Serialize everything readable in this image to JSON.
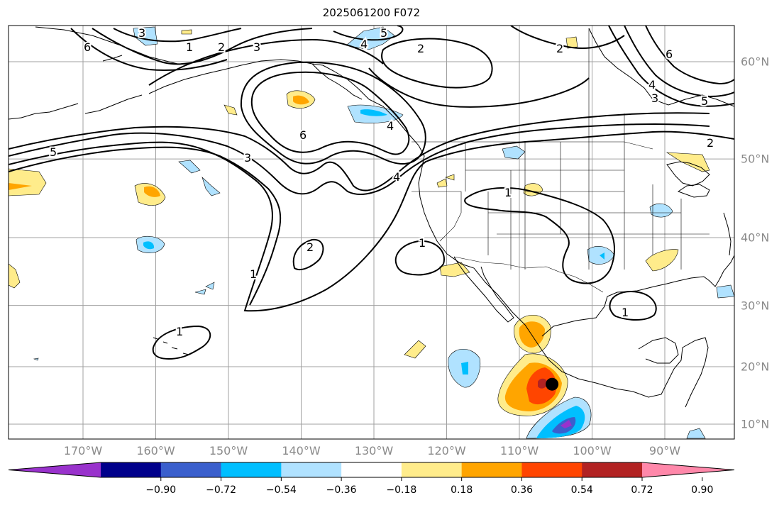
{
  "title": "2025061200 F072",
  "lon_labels": [
    {
      "text": "170°W",
      "lon": -170
    },
    {
      "text": "160°W",
      "lon": -160
    },
    {
      "text": "150°W",
      "lon": -150
    },
    {
      "text": "140°W",
      "lon": -140
    },
    {
      "text": "130°W",
      "lon": -130
    },
    {
      "text": "120°W",
      "lon": -120
    },
    {
      "text": "110°W",
      "lon": -110
    },
    {
      "text": "100°W",
      "lon": -100
    },
    {
      "text": "90°W",
      "lon": -90
    }
  ],
  "lat_labels": [
    {
      "text": "60°N",
      "lat": 60
    },
    {
      "text": "50°N",
      "lat": 50
    },
    {
      "text": "40°N",
      "lat": 40
    },
    {
      "text": "30°N",
      "lat": 30
    },
    {
      "text": "20°N",
      "lat": 20
    },
    {
      "text": "10°N",
      "lat": 10
    }
  ],
  "colorbar": {
    "colors": [
      "#9932CC",
      "#00008B",
      "#3A5FCD",
      "#00BFFF",
      "#B0E2FF",
      "#FFFFFF",
      "#FFEC8B",
      "#FFA500",
      "#FF4500",
      "#B22222",
      "#FF88AA"
    ],
    "tick_labels": [
      "−0.90",
      "−0.72",
      "−0.54",
      "−0.36",
      "−0.18",
      "0.18",
      "0.36",
      "0.54",
      "0.72",
      "0.90"
    ]
  },
  "contour_labels": [
    "1",
    "2",
    "3",
    "4",
    "5",
    "6"
  ],
  "marker": {
    "name": "storm-center",
    "lon": -105.5,
    "lat": 17
  }
}
